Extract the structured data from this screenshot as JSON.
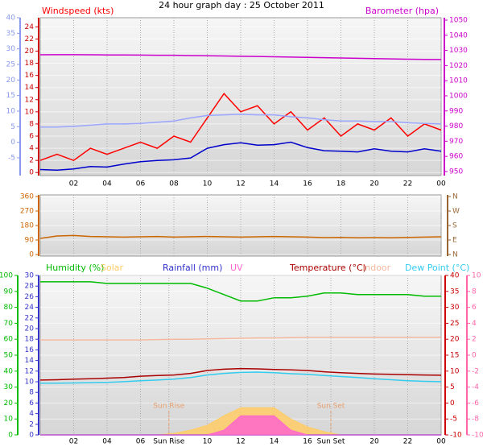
{
  "header": {
    "title": "24 hour graph day : 25 October 2011"
  },
  "chart_data": [
    {
      "type": "line",
      "x": [
        0,
        1,
        2,
        3,
        4,
        5,
        6,
        7,
        8,
        9,
        10,
        11,
        12,
        13,
        14,
        15,
        16,
        17,
        18,
        19,
        20,
        21,
        22,
        23,
        24
      ],
      "xlim": [
        0,
        24
      ],
      "xticks": [
        {
          "value": 2,
          "label": "02"
        },
        {
          "value": 4,
          "label": "04"
        },
        {
          "value": 6,
          "label": "06"
        },
        {
          "value": 8,
          "label": "08"
        },
        10,
        12,
        14,
        16,
        18,
        20,
        22,
        {
          "value": 24,
          "label": "00"
        }
      ],
      "ylim": [
        -0.5,
        25.5
      ],
      "yticks": [
        0,
        2,
        4,
        6,
        8,
        10,
        12,
        14,
        16,
        18,
        20,
        22,
        24
      ],
      "ycolor": "#cc0000",
      "y2lim": [
        947.3,
        1051.6
      ],
      "y2ticks": [
        950,
        960,
        970,
        980,
        990,
        1000,
        1010,
        1020,
        1030,
        1040,
        1050
      ],
      "y2color": "#cc00cc",
      "y3lim": [
        -10.7,
        40
      ],
      "y3ticks": [
        -5,
        0,
        5,
        10,
        15,
        20,
        25,
        30,
        35,
        40
      ],
      "y3color": "#8899ee",
      "grid": true,
      "series": [
        {
          "name": "Windspeed (kts)",
          "color": "#ff0000",
          "values": [
            2,
            3,
            2,
            4,
            3,
            4,
            5,
            4,
            6,
            5,
            9,
            13,
            10,
            11,
            8,
            10,
            7,
            9,
            6,
            8,
            7,
            9,
            6,
            8,
            7
          ]
        },
        {
          "color": "#9aa6ff",
          "values": [
            7.5,
            7.5,
            7.6,
            7.8,
            8,
            8,
            8.1,
            8.3,
            8.5,
            9,
            9.4,
            9.5,
            9.6,
            9.5,
            9.5,
            9.2,
            9,
            8.7,
            8.5,
            8.5,
            8.4,
            8.4,
            8.2,
            8.1,
            8
          ]
        },
        {
          "color": "#0000cc",
          "values": [
            0.5,
            0.4,
            0.6,
            1,
            0.9,
            1.4,
            1.8,
            2,
            2.1,
            2.4,
            4,
            4.6,
            4.9,
            4.5,
            4.6,
            5,
            4.1,
            3.6,
            3.5,
            3.4,
            3.9,
            3.5,
            3.4,
            3.9,
            3.5
          ]
        },
        {
          "name": "Barometer (hpa)",
          "color": "#cc00cc",
          "axis": "y2",
          "values": [
            1027.1,
            1027.2,
            1027.2,
            1027.1,
            1027,
            1027,
            1026.9,
            1026.8,
            1026.8,
            1026.6,
            1026.5,
            1026.3,
            1026.1,
            1026,
            1025.8,
            1025.6,
            1025.4,
            1025.2,
            1025,
            1024.8,
            1024.6,
            1024.4,
            1024.2,
            1024.1,
            1024
          ]
        }
      ]
    },
    {
      "type": "line",
      "x": [
        0,
        1,
        2,
        3,
        4,
        5,
        6,
        7,
        8,
        9,
        10,
        11,
        12,
        13,
        14,
        15,
        16,
        17,
        18,
        19,
        20,
        21,
        22,
        23,
        24
      ],
      "xlim": [
        0,
        24
      ],
      "xticks": [
        2,
        4,
        6,
        8,
        10,
        12,
        14,
        16,
        18,
        20,
        22,
        24
      ],
      "ylim": [
        -10,
        370
      ],
      "yticks": [
        0,
        90,
        180,
        270,
        360
      ],
      "ycolor": "#cc6600",
      "y2ticks": [
        {
          "value": 0,
          "label": "N"
        },
        {
          "value": 90,
          "label": "E"
        },
        {
          "value": 180,
          "label": "S"
        },
        {
          "value": 270,
          "label": "W"
        },
        {
          "value": 360,
          "label": "N"
        }
      ],
      "y2color": "#996633",
      "grid": true,
      "series": [
        {
          "color": "#cc6600",
          "values": [
            100,
            115,
            118,
            112,
            110,
            108,
            110,
            112,
            108,
            110,
            112,
            110,
            108,
            110,
            112,
            110,
            108,
            105,
            106,
            104,
            105,
            104,
            106,
            108,
            110
          ]
        }
      ]
    },
    {
      "type": "line",
      "x": [
        0,
        1,
        2,
        3,
        4,
        5,
        6,
        7,
        8,
        9,
        10,
        11,
        12,
        13,
        14,
        15,
        16,
        17,
        18,
        19,
        20,
        21,
        22,
        23,
        24
      ],
      "xlim": [
        0,
        24
      ],
      "xticks": [
        {
          "value": 2,
          "label": "02"
        },
        {
          "value": 4,
          "label": "04"
        },
        {
          "value": 6,
          "label": "06"
        },
        {
          "value": 7.7,
          "label": "Sun Rise"
        },
        10,
        12,
        14,
        16,
        {
          "value": 17.4,
          "label": "Sun Set"
        },
        20,
        22,
        {
          "value": 24,
          "label": "00"
        }
      ],
      "ylim": [
        0,
        100
      ],
      "yticks": [
        0,
        10,
        20,
        30,
        40,
        50,
        60,
        70,
        80,
        90,
        100
      ],
      "ycolor": "#00bb00",
      "y4lim": [
        0,
        30
      ],
      "y4ticks": [
        0,
        2,
        4,
        6,
        8,
        10,
        12,
        14,
        16,
        18,
        20,
        22,
        24,
        26,
        28,
        30
      ],
      "y4color": "#3333cc",
      "y2lim": [
        -10,
        40
      ],
      "y2ticks": [
        -10,
        -5,
        0,
        5,
        10,
        15,
        20,
        25,
        30,
        35,
        40
      ],
      "y2color": "#cc0000",
      "y3lim": [
        -10,
        10
      ],
      "y3ticks": [
        -10,
        -8,
        -6,
        -4,
        -2,
        0,
        2,
        4,
        6,
        8,
        10
      ],
      "y3color": "#ff66aa",
      "grid": true,
      "annotations": [
        {
          "x": 7.7,
          "text": "Sun Rise"
        },
        {
          "x": 17.4,
          "text": "Sun Set"
        }
      ],
      "series": [
        {
          "name": "Humidity (%)",
          "color": "#00bb00",
          "values": [
            96,
            96,
            96,
            96,
            95,
            95,
            95,
            95,
            95,
            95,
            92,
            88,
            84,
            84,
            86,
            86,
            87,
            89,
            89,
            88,
            88,
            88,
            88,
            87,
            87
          ]
        },
        {
          "name": "Solar",
          "color": "#ffcc66",
          "style": "area",
          "values": [
            0,
            0,
            0,
            0,
            0,
            0,
            0,
            0,
            1,
            3,
            6,
            12,
            17,
            17,
            17,
            10,
            5,
            2,
            0,
            0,
            0,
            0,
            0,
            0,
            0
          ]
        },
        {
          "name": "Rainfall (mm)",
          "color": "#3333cc",
          "axis": "y4",
          "values": [
            0,
            0,
            0,
            0,
            0,
            0,
            0,
            0,
            0,
            0,
            0,
            0,
            0,
            0,
            0,
            0,
            0,
            0,
            0,
            0,
            0,
            0,
            0,
            0,
            0
          ]
        },
        {
          "name": "UV",
          "color": "#ff66cc",
          "style": "area",
          "values": [
            0,
            0,
            0,
            0,
            0,
            0,
            0,
            0,
            0,
            0,
            0,
            3,
            12,
            12,
            12,
            3,
            0,
            0,
            0,
            0,
            0,
            0,
            0,
            0,
            0
          ]
        },
        {
          "name": "Temperature (°C)",
          "color": "#aa0000",
          "axis": "y2",
          "values": [
            7.2,
            7.3,
            7.5,
            7.6,
            7.8,
            8,
            8.4,
            8.6,
            8.8,
            9.3,
            10.2,
            10.6,
            10.8,
            10.7,
            10.5,
            10.4,
            10.2,
            9.8,
            9.5,
            9.3,
            9.1,
            9,
            8.9,
            8.8,
            8.7
          ]
        },
        {
          "name": "Indoor",
          "color": "#f4b8a0",
          "axis": "y2",
          "values": [
            19.8,
            19.8,
            19.8,
            19.8,
            19.8,
            19.8,
            19.8,
            19.9,
            20,
            20,
            20.1,
            20.2,
            20.3,
            20.4,
            20.4,
            20.5,
            20.6,
            20.6,
            20.6,
            20.6,
            20.6,
            20.6,
            20.6,
            20.6,
            20.6
          ]
        },
        {
          "name": "Dew Point (°C)",
          "color": "#33ccee",
          "axis": "y2",
          "values": [
            6.2,
            6.2,
            6.3,
            6.4,
            6.5,
            6.7,
            7,
            7.2,
            7.5,
            8,
            8.8,
            9.3,
            9.6,
            9.7,
            9.5,
            9.2,
            9,
            8.6,
            8.3,
            8,
            7.6,
            7.3,
            7,
            6.8,
            6.7
          ]
        }
      ]
    }
  ]
}
